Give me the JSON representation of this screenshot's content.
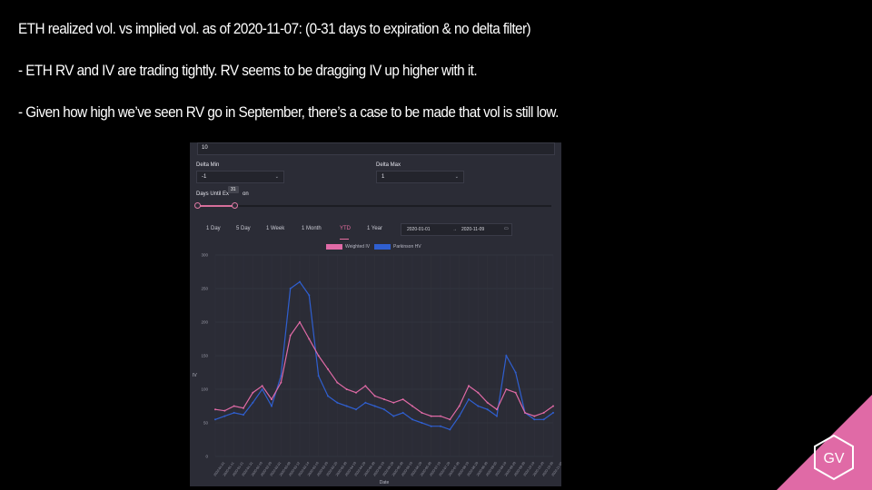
{
  "slide": {
    "title": "ETH realized vol. vs implied vol. as of 2020-11-07: (0-31 days to expiration & no delta filter)",
    "bullets": [
      "- ETH RV and IV are trading tightly. RV seems to be dragging IV up higher with it.",
      "- Given how high we’ve seen RV go in September, there’s a case to be made that vol is still low."
    ],
    "logo_text": "GV",
    "accent_color": "#e06aa6"
  },
  "panel": {
    "top_value": "10",
    "delta_min_label": "Delta Min",
    "delta_min_value": "-1",
    "delta_max_label": "Delta Max",
    "delta_max_value": "1",
    "days_label_left": "Days Until Ex",
    "days_label_right": "on",
    "days_value": "31",
    "tabs": [
      "1 Day",
      "5 Day",
      "1 Week",
      "1 Month",
      "YTD",
      "1 Year"
    ],
    "active_tab": "YTD",
    "date_from": "2020-01-01",
    "date_sep": "→",
    "date_to": "2020-11-09",
    "calendar_icon": "calendar-icon"
  },
  "chart_data": {
    "type": "line",
    "xlabel": "Date",
    "ylabel": "IV",
    "ylim": [
      0,
      300
    ],
    "yticks": [
      0,
      50,
      100,
      150,
      200,
      250,
      300
    ],
    "x": [
      "2020-01-01",
      "2020-01-11",
      "2020-01-21",
      "2020-01-31",
      "2020-02-10",
      "2020-02-20",
      "2020-03-01",
      "2020-03-08",
      "2020-03-12",
      "2020-03-14",
      "2020-03-16",
      "2020-03-20",
      "2020-03-25",
      "2020-03-30",
      "2020-04-10",
      "2020-04-20",
      "2020-04-30",
      "2020-05-10",
      "2020-05-20",
      "2020-05-30",
      "2020-06-10",
      "2020-06-20",
      "2020-06-30",
      "2020-07-10",
      "2020-07-20",
      "2020-07-30",
      "2020-08-10",
      "2020-08-20",
      "2020-08-30",
      "2020-09-05",
      "2020-09-10",
      "2020-09-20",
      "2020-09-30",
      "2020-10-10",
      "2020-10-20",
      "2020-10-30",
      "2020-11-09"
    ],
    "series": [
      {
        "name": "Weighted IV",
        "color": "#e06aa6",
        "values": [
          70,
          68,
          75,
          72,
          95,
          105,
          85,
          110,
          180,
          200,
          175,
          150,
          130,
          110,
          100,
          95,
          105,
          90,
          85,
          80,
          85,
          75,
          65,
          60,
          60,
          55,
          75,
          105,
          95,
          80,
          70,
          100,
          95,
          65,
          60,
          65,
          75
        ]
      },
      {
        "name": "Parkinson HV",
        "color": "#2f5fd0",
        "values": [
          55,
          60,
          65,
          62,
          80,
          100,
          75,
          120,
          250,
          260,
          240,
          120,
          90,
          80,
          75,
          70,
          80,
          75,
          70,
          60,
          65,
          55,
          50,
          45,
          45,
          40,
          60,
          85,
          75,
          70,
          60,
          150,
          125,
          65,
          55,
          55,
          65
        ]
      }
    ]
  }
}
